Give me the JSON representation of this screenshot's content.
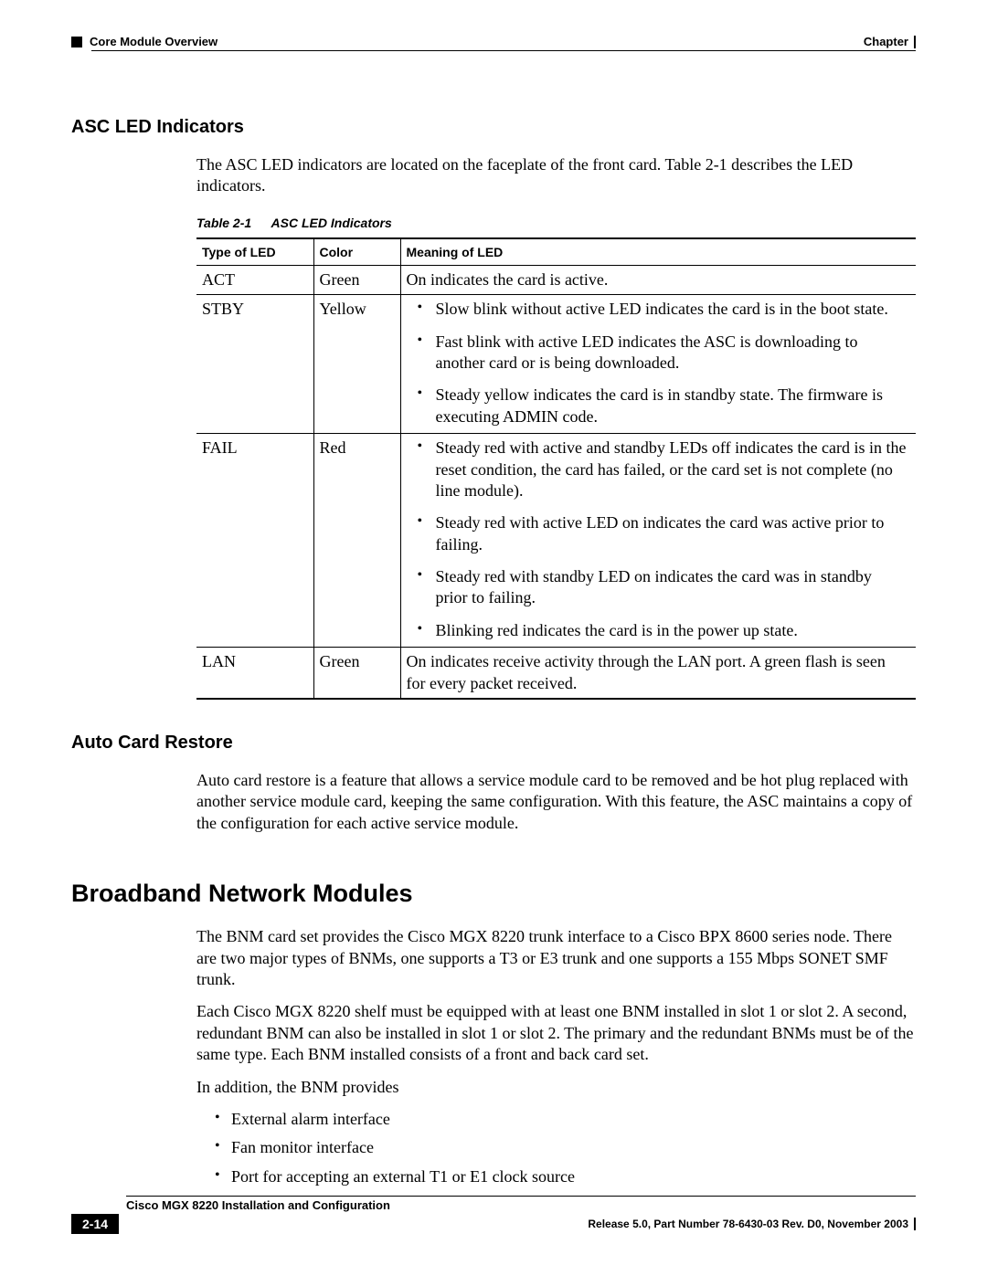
{
  "header": {
    "section_label": "Core Module Overview",
    "chapter_label": "Chapter"
  },
  "section1": {
    "title": "ASC LED Indicators",
    "intro": "The ASC LED indicators are located on the faceplate of the front card. Table 2-1 describes the LED indicators.",
    "table_caption_num": "Table 2-1",
    "table_caption_text": "ASC LED Indicators",
    "columns": {
      "c0": "Type of LED",
      "c1": "Color",
      "c2": "Meaning of LED"
    },
    "rows": {
      "r0": {
        "type": "ACT",
        "color": "Green",
        "meaning_text": "On indicates the card is active."
      },
      "r1": {
        "type": "STBY",
        "color": "Yellow",
        "items": {
          "i0": "Slow blink without active LED indicates the card is in the boot state.",
          "i1": "Fast blink with active LED indicates the ASC is downloading to another card or is being downloaded.",
          "i2": "Steady yellow indicates the card is in standby state. The firmware is executing ADMIN code."
        }
      },
      "r2": {
        "type": "FAIL",
        "color": "Red",
        "items": {
          "i0": "Steady red with active and standby LEDs off indicates the card is in the reset condition, the card has failed, or the card set is not complete (no line module).",
          "i1": "Steady red with active LED on indicates the card was active prior to failing.",
          "i2": "Steady red with standby LED on indicates the card was in standby prior to failing.",
          "i3": "Blinking red indicates the card is in the power up state."
        }
      },
      "r3": {
        "type": "LAN",
        "color": "Green",
        "meaning_text": "On indicates receive activity through the LAN port. A green flash is seen for every packet received."
      }
    }
  },
  "section2": {
    "title": "Auto Card Restore",
    "para": "Auto card restore is a feature that allows a service module card to be removed and be hot plug replaced with another service module card, keeping the same configuration. With this feature, the ASC maintains a copy of the configuration for each active service module."
  },
  "section3": {
    "title": "Broadband Network Modules",
    "p1": "The BNM card set provides the Cisco MGX 8220 trunk interface to a Cisco BPX 8600 series node. There are two major types of BNMs, one supports a T3 or E3 trunk and one supports a 155 Mbps SONET SMF trunk.",
    "p2": "Each Cisco MGX 8220 shelf must be equipped with at least one BNM installed in slot 1 or slot 2. A second, redundant BNM can also be installed in slot 1 or slot 2. The primary and the redundant BNMs must be of the same type. Each BNM installed consists of a front and back card set.",
    "p3": "In addition, the BNM provides",
    "bullets": {
      "b0": "External alarm interface",
      "b1": "Fan monitor interface",
      "b2": "Port for accepting an external T1 or E1 clock source"
    }
  },
  "footer": {
    "doc_title": "Cisco MGX 8220 Installation and Configuration",
    "page_num": "2-14",
    "release": "Release 5.0, Part Number 78-6430-03 Rev. D0, November 2003"
  }
}
